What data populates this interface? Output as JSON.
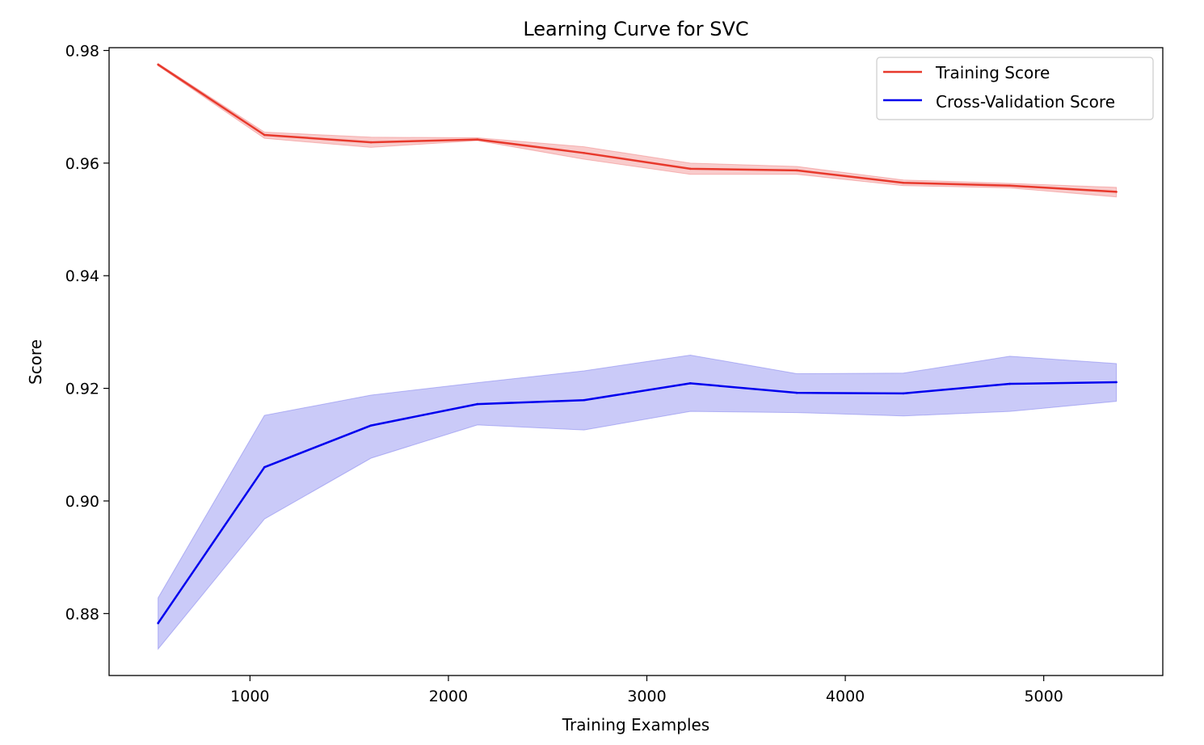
{
  "chart_data": {
    "type": "line",
    "title": "Learning Curve for SVC",
    "xlabel": "Training Examples",
    "ylabel": "Score",
    "xlim": [
      290,
      5600
    ],
    "ylim": [
      0.869,
      0.9805
    ],
    "xticks": [
      1000,
      2000,
      3000,
      4000,
      5000
    ],
    "xtick_labels": [
      "1000",
      "2000",
      "3000",
      "4000",
      "5000"
    ],
    "yticks": [
      0.88,
      0.9,
      0.92,
      0.94,
      0.96,
      0.98
    ],
    "ytick_labels": [
      "0.88",
      "0.90",
      "0.92",
      "0.94",
      "0.96",
      "0.98"
    ],
    "grid": false,
    "legend_position": "top-right",
    "x": [
      537,
      1073,
      1610,
      2146,
      2683,
      3219,
      3756,
      4293,
      4829,
      5366
    ],
    "series": [
      {
        "name": "Training Score",
        "color": "#e8392c",
        "band_color": "#f08080",
        "values": [
          0.9775,
          0.965,
          0.9637,
          0.9642,
          0.9618,
          0.959,
          0.9587,
          0.9565,
          0.956,
          0.9549
        ],
        "lower": [
          0.9773,
          0.9644,
          0.9628,
          0.964,
          0.9607,
          0.958,
          0.958,
          0.956,
          0.9556,
          0.954
        ],
        "upper": [
          0.9777,
          0.9655,
          0.9646,
          0.9645,
          0.9629,
          0.96,
          0.9594,
          0.957,
          0.9564,
          0.9557
        ]
      },
      {
        "name": "Cross-Validation Score",
        "color": "#0000ee",
        "band_color": "#7b7bee",
        "values": [
          0.8783,
          0.906,
          0.9134,
          0.9172,
          0.9179,
          0.9209,
          0.9192,
          0.9191,
          0.9208,
          0.9211
        ],
        "lower": [
          0.8737,
          0.8968,
          0.9076,
          0.9135,
          0.9126,
          0.9159,
          0.9157,
          0.9151,
          0.9159,
          0.9177
        ],
        "upper": [
          0.8828,
          0.9152,
          0.9188,
          0.921,
          0.9231,
          0.9259,
          0.9226,
          0.9227,
          0.9257,
          0.9244
        ]
      }
    ]
  }
}
